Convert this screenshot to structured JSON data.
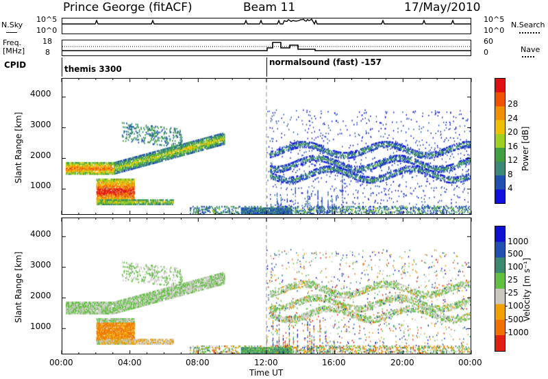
{
  "header": {
    "site": "Prince George (fitACF)",
    "beam": "Beam 11",
    "date": "17/May/2010"
  },
  "noise_panel": {
    "left_label": "N.Sky",
    "left_top": "10^5",
    "left_bottom": "10^0",
    "right_top": "10^5",
    "right_bottom": "10^0",
    "right_label": "N.Search"
  },
  "freq_panel": {
    "left_label_1": "Freq.",
    "left_label_2": "[MHz]",
    "left_top": "18",
    "left_bottom": "8",
    "right_top": "60",
    "right_bottom": "0",
    "right_label": "Nave"
  },
  "cpid": {
    "label": "CPID",
    "mode1": "themis 3300",
    "mode2": "normalsound (fast) -157"
  },
  "power_panel": {
    "ylabel": "Slant Range [km]",
    "yticks": [
      "1000",
      "2000",
      "3000",
      "4000"
    ],
    "colorbar_title": "Power [dB]",
    "colorbar_ticks": [
      "4",
      "8",
      "12",
      "16",
      "20",
      "24",
      "28"
    ],
    "colors": [
      "#1010e0",
      "#2050b0",
      "#3a8a78",
      "#40a040",
      "#a0d020",
      "#f0c000",
      "#f09000",
      "#f05000",
      "#e01010"
    ]
  },
  "velocity_panel": {
    "ylabel": "Slant Range [km]",
    "yticks": [
      "1000",
      "2000",
      "3000",
      "4000"
    ],
    "colorbar_title": "Velocity [m s⁻¹]",
    "colorbar_ticks": [
      "1000",
      "500",
      "100",
      "25",
      "-25",
      "-100",
      "-500",
      "-1000"
    ],
    "colors": [
      "#1010d0",
      "#2050b0",
      "#3a8a70",
      "#60c040",
      "#c8c8c0",
      "#f0a000",
      "#f07000",
      "#e02010"
    ]
  },
  "xaxis": {
    "label": "Time UT",
    "ticks": [
      "00:00",
      "04:00",
      "08:00",
      "12:00",
      "16:00",
      "20:00",
      "00:00"
    ]
  },
  "chart_data": {
    "type": "heatmap",
    "title": "Prince George (fitACF)",
    "xlabel": "Time UT",
    "ylabel": "Slant Range [km]",
    "x_range_hours": [
      0,
      24
    ],
    "ylim": [
      180,
      4600
    ],
    "series": [
      {
        "name": "Power [dB]",
        "range": [
          0,
          32
        ]
      },
      {
        "name": "Velocity [m s⁻¹]",
        "range": [
          -1200,
          1200
        ]
      }
    ]
  }
}
